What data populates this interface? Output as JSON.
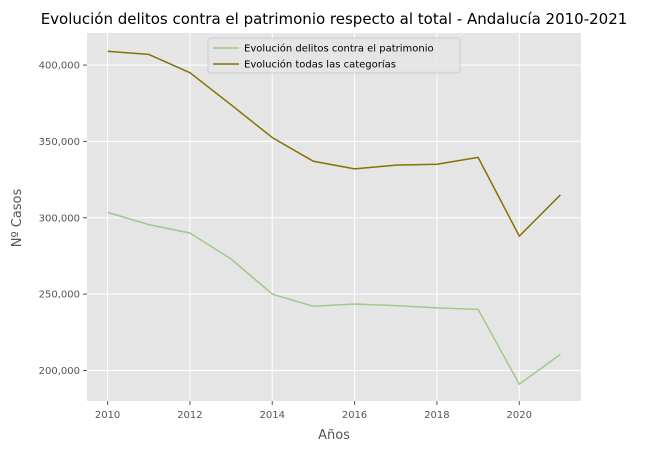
{
  "chart_data": {
    "type": "line",
    "title": "Evolución delitos contra el patrimonio respecto al total - Andalucía 2010-2021",
    "xlabel": "Años",
    "ylabel": "Nº Casos",
    "x": [
      2010,
      2011,
      2012,
      2013,
      2014,
      2015,
      2016,
      2017,
      2018,
      2019,
      2020,
      2021
    ],
    "xlim": [
      2009.5,
      2021.5
    ],
    "ylim": [
      180000,
      421000
    ],
    "xticks": [
      2010,
      2012,
      2014,
      2016,
      2018,
      2020
    ],
    "yticks": [
      200000,
      250000,
      300000,
      350000,
      400000
    ],
    "ytick_labels": [
      "200,000",
      "250,000",
      "300,000",
      "350,000",
      "400,000"
    ],
    "grid": true,
    "legend_position": "top-center",
    "background_color": "#e5e5e5",
    "series": [
      {
        "name": "Evolución delitos contra el patrimonio",
        "color": "#a0c98a",
        "values": [
          303500,
          295500,
          290000,
          273000,
          250000,
          242000,
          243500,
          242500,
          241000,
          240000,
          191000,
          210500
        ]
      },
      {
        "name": "Evolución todas las categorías",
        "color": "#857200",
        "values": [
          409000,
          407000,
          395000,
          374000,
          352500,
          337000,
          332000,
          334500,
          335000,
          339500,
          288000,
          315000
        ]
      }
    ]
  }
}
